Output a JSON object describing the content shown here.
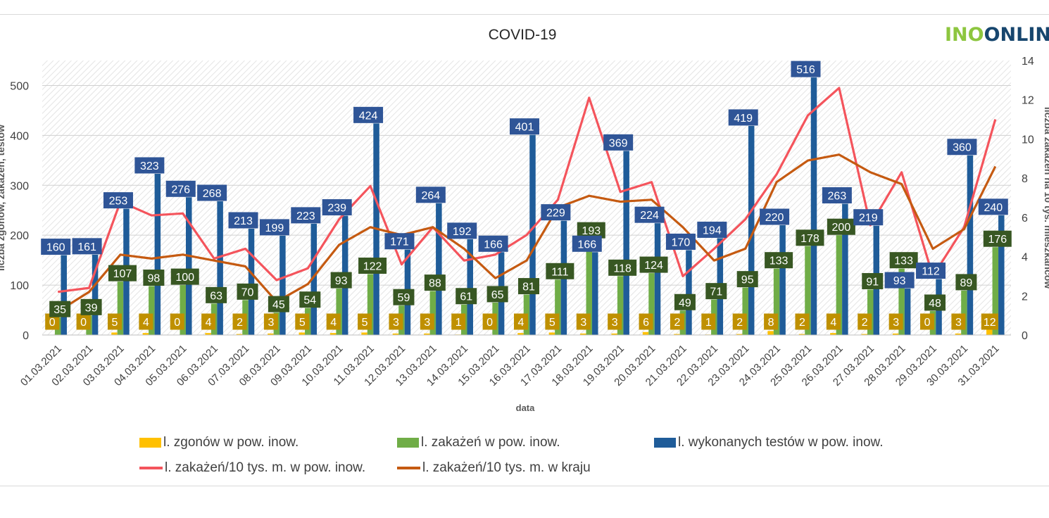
{
  "logo": {
    "part1": "INO",
    "part2": "ONLIN"
  },
  "chart_data": {
    "type": "bar",
    "title": "COVID-19",
    "xlabel": "data",
    "ylabel": "liczba zgonów, zakażeń, testów",
    "y2label": "liczba zakażeń na 10 tys. mieszkańców",
    "ylim": [
      0,
      550
    ],
    "y2lim": [
      0,
      14
    ],
    "yticks": [
      0,
      100,
      200,
      300,
      400,
      500
    ],
    "y2ticks": [
      0,
      2,
      4,
      6,
      8,
      10,
      12,
      14
    ],
    "grid": true,
    "legend_position": "bottom",
    "categories": [
      "01.03.2021",
      "02.03.2021",
      "03.03.2021",
      "04.03.2021",
      "05.03.2021",
      "06.03.2021",
      "07.03.2021",
      "08.03.2021",
      "09.03.2021",
      "10.03.2021",
      "11.03.2021",
      "12.03.2021",
      "13.03.2021",
      "14.03.2021",
      "15.03.2021",
      "16.03.2021",
      "17.03.2021",
      "18.03.2021",
      "19.03.2021",
      "20.03.2021",
      "21.03.2021",
      "22.03.2021",
      "23.03.2021",
      "24.03.2021",
      "25.03.2021",
      "26.03.2021",
      "27.03.2021",
      "28.03.2021",
      "29.03.2021",
      "30.03.2021",
      "31.03.2021"
    ],
    "series": [
      {
        "name": "l. zgonów w pow. inow.",
        "type": "bar",
        "axis": "left",
        "color": "#ffc000",
        "label_bg": "#bf9000",
        "values": [
          0,
          0,
          5,
          4,
          0,
          4,
          2,
          3,
          5,
          4,
          5,
          3,
          3,
          1,
          0,
          4,
          5,
          3,
          3,
          6,
          2,
          1,
          2,
          8,
          2,
          4,
          2,
          3,
          0,
          3,
          12
        ]
      },
      {
        "name": "l. zakażeń w pow. inow.",
        "type": "bar",
        "axis": "left",
        "color": "#70ad47",
        "label_bg": "#385723",
        "values": [
          35,
          39,
          107,
          98,
          100,
          63,
          70,
          45,
          54,
          93,
          122,
          59,
          88,
          61,
          65,
          81,
          111,
          193,
          118,
          124,
          49,
          71,
          95,
          133,
          178,
          200,
          91,
          133,
          48,
          89,
          176
        ]
      },
      {
        "name": "l. wykonanych testów w pow. inow.",
        "type": "bar",
        "axis": "left",
        "color": "#1f5c99",
        "label_bg": "#2f5597",
        "values": [
          160,
          161,
          253,
          323,
          276,
          268,
          213,
          199,
          223,
          239,
          424,
          171,
          264,
          192,
          166,
          401,
          229,
          166,
          369,
          224,
          170,
          194,
          419,
          220,
          516,
          263,
          219,
          93,
          112,
          360,
          240
        ]
      },
      {
        "name": "l. zakażeń/10 tys. m. w pow. inow.",
        "type": "line",
        "axis": "right",
        "color": "#f4545c",
        "values": [
          2.2,
          2.4,
          6.8,
          6.1,
          6.2,
          3.9,
          4.4,
          2.8,
          3.4,
          5.9,
          7.6,
          3.6,
          5.5,
          3.8,
          4.1,
          5.1,
          6.9,
          12.1,
          7.3,
          7.8,
          3.0,
          4.4,
          5.9,
          8.2,
          11.2,
          12.6,
          5.6,
          8.3,
          3.0,
          5.5,
          11.0
        ]
      },
      {
        "name": "l. zakażeń/10 tys. m. w kraju",
        "type": "line",
        "axis": "right",
        "color": "#c55a11",
        "values": [
          1.2,
          2.2,
          4.1,
          3.9,
          4.1,
          3.8,
          3.5,
          1.7,
          2.6,
          4.6,
          5.5,
          5.1,
          5.5,
          4.4,
          2.9,
          3.8,
          6.5,
          7.1,
          6.8,
          6.9,
          5.5,
          3.8,
          4.4,
          7.8,
          8.9,
          9.2,
          8.3,
          7.7,
          4.4,
          5.4,
          8.6
        ]
      }
    ]
  }
}
